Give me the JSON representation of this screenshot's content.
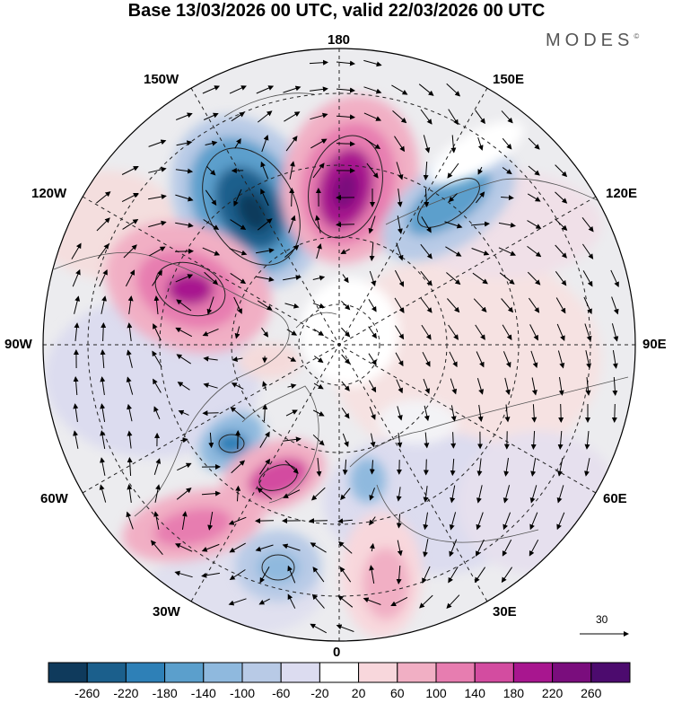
{
  "title": "Base 13/03/2026 00 UTC, valid 22/03/2026 00 UTC",
  "brand": {
    "name": "MODES",
    "mark": "©"
  },
  "map": {
    "projection": "north-polar-stereographic",
    "longitude_labels": {
      "top": "180",
      "bottom": "0",
      "left": "90W",
      "right": "90E",
      "upper_left_outer": "120W",
      "upper_left_inner": "150W",
      "upper_right_inner": "150E",
      "upper_right_outer": "120E",
      "lower_left_outer": "60W",
      "lower_left_inner": "30W",
      "lower_right_inner": "30E",
      "lower_right_outer": "60E"
    },
    "vector_reference": {
      "value": "30"
    }
  },
  "anomaly_features": [
    {
      "sign": "negative",
      "label": "-260 core",
      "region": "north of Alaska / 160W"
    },
    {
      "sign": "positive",
      "label": "+260 core",
      "region": "near 175E"
    },
    {
      "sign": "negative",
      "label": "-180 core",
      "region": "east Siberia / 140E"
    },
    {
      "sign": "positive",
      "label": "+220 core",
      "region": "Canada / 120W"
    },
    {
      "sign": "negative",
      "label": "-180 core",
      "region": "Labrador / 60W"
    },
    {
      "sign": "positive",
      "label": "+220 core",
      "region": "Greenland / 40W"
    },
    {
      "sign": "positive",
      "label": "+160 core",
      "region": "North Atlantic / 50W"
    },
    {
      "sign": "negative",
      "label": "-140 core",
      "region": "Atlantic / 15W"
    },
    {
      "sign": "positive",
      "label": "+100 core",
      "region": "Europe / 15E"
    }
  ],
  "colorbar": {
    "labels": [
      "-260",
      "-220",
      "-180",
      "-140",
      "-100",
      "-60",
      "-20",
      "20",
      "60",
      "100",
      "140",
      "180",
      "220",
      "260"
    ],
    "colors": [
      "#0f3a5c",
      "#1b5f8c",
      "#2e80b7",
      "#5b9fcc",
      "#8fb9de",
      "#b8cae6",
      "#dcdcf0",
      "#ffffff",
      "#f8d7dc",
      "#f1afc4",
      "#e77db0",
      "#d34ca0",
      "#a8168f",
      "#7a0d7d",
      "#4c0b6e"
    ]
  }
}
